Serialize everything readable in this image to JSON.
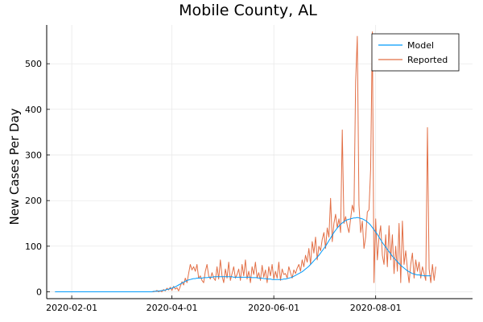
{
  "chart_data": {
    "type": "line",
    "title": "Mobile County, AL",
    "xlabel": "",
    "ylabel": "New Cases Per Day",
    "x_start": "2020-01-22",
    "x_ticks": [
      "2020-02-01",
      "2020-04-01",
      "2020-06-01",
      "2020-08-01"
    ],
    "y_ticks": [
      0,
      100,
      200,
      300,
      400,
      500
    ],
    "xlim": [
      "2020-01-17",
      "2020-09-28"
    ],
    "ylim": [
      -15,
      585
    ],
    "grid": true,
    "legend_position": "top-right",
    "series": [
      {
        "name": "Model",
        "color": "#009AFA",
        "values": [
          0,
          0,
          0,
          0,
          0,
          0,
          0,
          0,
          0,
          0,
          0,
          0,
          0,
          0,
          0,
          0,
          0,
          0,
          0,
          0,
          0,
          0,
          0,
          0,
          0,
          0,
          0,
          0,
          0,
          0,
          0,
          0,
          0,
          0,
          0,
          0,
          0,
          0,
          0,
          0,
          0,
          0,
          0,
          0,
          0,
          0,
          0,
          0,
          0,
          0,
          0,
          0,
          0,
          0,
          0,
          0,
          0,
          0,
          0,
          1,
          1,
          1,
          2,
          2,
          3,
          3,
          4,
          5,
          6,
          7,
          8,
          10,
          11,
          13,
          15,
          17,
          19,
          21,
          23,
          25,
          26,
          27,
          28,
          29,
          29,
          30,
          30,
          30,
          30,
          31,
          31,
          31,
          32,
          32,
          32,
          33,
          33,
          33,
          33,
          33,
          33,
          33,
          33,
          33,
          33,
          33,
          33,
          32,
          32,
          32,
          32,
          32,
          32,
          32,
          32,
          32,
          32,
          32,
          31,
          31,
          31,
          31,
          30,
          30,
          30,
          29,
          29,
          28,
          28,
          28,
          27,
          27,
          27,
          27,
          27,
          27,
          27,
          28,
          28,
          29,
          30,
          31,
          32,
          34,
          36,
          38,
          40,
          42,
          44,
          47,
          50,
          53,
          56,
          60,
          64,
          68,
          72,
          76,
          80,
          85,
          90,
          95,
          100,
          106,
          112,
          118,
          124,
          130,
          135,
          140,
          144,
          148,
          151,
          154,
          156,
          158,
          159,
          160,
          161,
          162,
          162,
          163,
          162,
          161,
          160,
          158,
          156,
          153,
          150,
          146,
          141,
          136,
          131,
          126,
          120,
          114,
          108,
          103,
          98,
          93,
          88,
          83,
          78,
          74,
          70,
          66,
          62,
          58,
          55,
          52,
          49,
          46,
          44,
          42,
          40,
          39,
          38,
          37,
          37,
          36,
          36,
          35,
          35,
          35,
          35,
          35
        ]
      },
      {
        "name": "Reported",
        "color": "#E26F46",
        "values": [
          0,
          0,
          0,
          0,
          0,
          0,
          0,
          0,
          0,
          0,
          0,
          0,
          0,
          0,
          0,
          0,
          0,
          0,
          0,
          0,
          0,
          0,
          0,
          0,
          0,
          0,
          0,
          0,
          0,
          0,
          0,
          0,
          0,
          0,
          0,
          0,
          0,
          0,
          0,
          0,
          0,
          0,
          0,
          0,
          0,
          0,
          0,
          0,
          0,
          0,
          0,
          0,
          0,
          0,
          0,
          0,
          0,
          0,
          0,
          0,
          1,
          3,
          0,
          2,
          0,
          5,
          2,
          8,
          4,
          10,
          3,
          12,
          6,
          9,
          2,
          12,
          22,
          15,
          30,
          20,
          40,
          60,
          48,
          55,
          45,
          60,
          30,
          35,
          25,
          20,
          45,
          60,
          35,
          28,
          42,
          30,
          25,
          55,
          28,
          70,
          35,
          20,
          50,
          30,
          65,
          25,
          40,
          55,
          30,
          38,
          50,
          25,
          60,
          35,
          70,
          28,
          45,
          20,
          55,
          38,
          65,
          30,
          42,
          25,
          58,
          32,
          48,
          20,
          55,
          35,
          60,
          28,
          45,
          30,
          65,
          25,
          50,
          38,
          40,
          30,
          55,
          42,
          30,
          48,
          40,
          52,
          60,
          45,
          70,
          55,
          80,
          65,
          95,
          60,
          110,
          85,
          120,
          70,
          100,
          90,
          115,
          130,
          95,
          140,
          120,
          205,
          110,
          150,
          170,
          140,
          160,
          130,
          355,
          150,
          165,
          145,
          130,
          160,
          190,
          175,
          460,
          560,
          190,
          130,
          155,
          95,
          120,
          175,
          180,
          270,
          570,
          20,
          160,
          70,
          120,
          145,
          80,
          60,
          125,
          55,
          145,
          70,
          125,
          40,
          100,
          45,
          150,
          20,
          155,
          60,
          90,
          50,
          20,
          60,
          85,
          30,
          70,
          45,
          65,
          30,
          55,
          40,
          25,
          360,
          50,
          20,
          60,
          25,
          55
        ]
      }
    ]
  }
}
